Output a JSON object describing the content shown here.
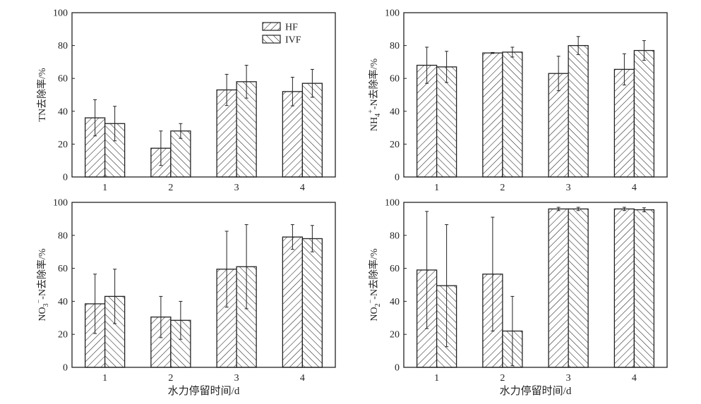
{
  "chart_data": [
    {
      "type": "bar",
      "ylabel_parts": [
        {
          "t": "TN去除率/%",
          "k": "n"
        }
      ],
      "categories": [
        "1",
        "2",
        "3",
        "4"
      ],
      "ylim": [
        0,
        100
      ],
      "yticks": [
        "0",
        "20",
        "40",
        "60",
        "80",
        "100"
      ],
      "xlabel": "",
      "legend": "top-right",
      "series": [
        {
          "name": "HF",
          "hatch": "forward",
          "values": [
            36,
            17.5,
            53,
            52
          ],
          "errors": [
            11,
            10.5,
            9.5,
            8.7
          ]
        },
        {
          "name": "IVF",
          "hatch": "backward",
          "values": [
            32.5,
            28,
            58,
            57
          ],
          "errors": [
            10.5,
            4.5,
            10,
            8.5
          ]
        }
      ]
    },
    {
      "type": "bar",
      "ylabel_parts": [
        {
          "t": "NH",
          "k": "n"
        },
        {
          "t": "4",
          "k": "sub"
        },
        {
          "t": "+",
          "k": "sup"
        },
        {
          "t": "-N去除率/%",
          "k": "n"
        }
      ],
      "categories": [
        "1",
        "2",
        "3",
        "4"
      ],
      "ylim": [
        0,
        100
      ],
      "yticks": [
        "0",
        "20",
        "40",
        "60",
        "80",
        "100"
      ],
      "xlabel": "",
      "series": [
        {
          "name": "HF",
          "hatch": "forward",
          "values": [
            68,
            75.5,
            63,
            65.5
          ],
          "errors": [
            11,
            0.3,
            10.5,
            9.5
          ]
        },
        {
          "name": "IVF",
          "hatch": "backward",
          "values": [
            67,
            76,
            80,
            77
          ],
          "errors": [
            9.5,
            3,
            5.5,
            6
          ]
        }
      ]
    },
    {
      "type": "bar",
      "ylabel_parts": [
        {
          "t": "NO",
          "k": "n"
        },
        {
          "t": "3",
          "k": "sub"
        },
        {
          "t": "−",
          "k": "sup"
        },
        {
          "t": "-N去除率/%",
          "k": "n"
        }
      ],
      "categories": [
        "1",
        "2",
        "3",
        "4"
      ],
      "ylim": [
        0,
        100
      ],
      "yticks": [
        "0",
        "20",
        "40",
        "60",
        "80",
        "100"
      ],
      "xlabel": "水力停留时间/d",
      "series": [
        {
          "name": "HF",
          "hatch": "forward",
          "values": [
            38.5,
            30.5,
            59.5,
            79
          ],
          "errors": [
            18,
            12.5,
            23,
            7.5
          ]
        },
        {
          "name": "IVF",
          "hatch": "backward",
          "values": [
            43,
            28.5,
            61,
            78
          ],
          "errors": [
            16.5,
            11.5,
            25.5,
            8
          ]
        }
      ]
    },
    {
      "type": "bar",
      "ylabel_parts": [
        {
          "t": "NO",
          "k": "n"
        },
        {
          "t": "2",
          "k": "sub"
        },
        {
          "t": "−",
          "k": "sup"
        },
        {
          "t": "-N去除率/%",
          "k": "n"
        }
      ],
      "categories": [
        "1",
        "2",
        "3",
        "4"
      ],
      "ylim": [
        0,
        100
      ],
      "yticks": [
        "0",
        "20",
        "40",
        "60",
        "80",
        "100"
      ],
      "xlabel": "水力停留时间/d",
      "series": [
        {
          "name": "HF",
          "hatch": "forward",
          "values": [
            59,
            56.5,
            96,
            96
          ],
          "errors": [
            35.5,
            34.5,
            1,
            1
          ]
        },
        {
          "name": "IVF",
          "hatch": "backward",
          "values": [
            49.5,
            22,
            96,
            95.5
          ],
          "errors": [
            37,
            21,
            1,
            1.2
          ]
        }
      ]
    }
  ]
}
